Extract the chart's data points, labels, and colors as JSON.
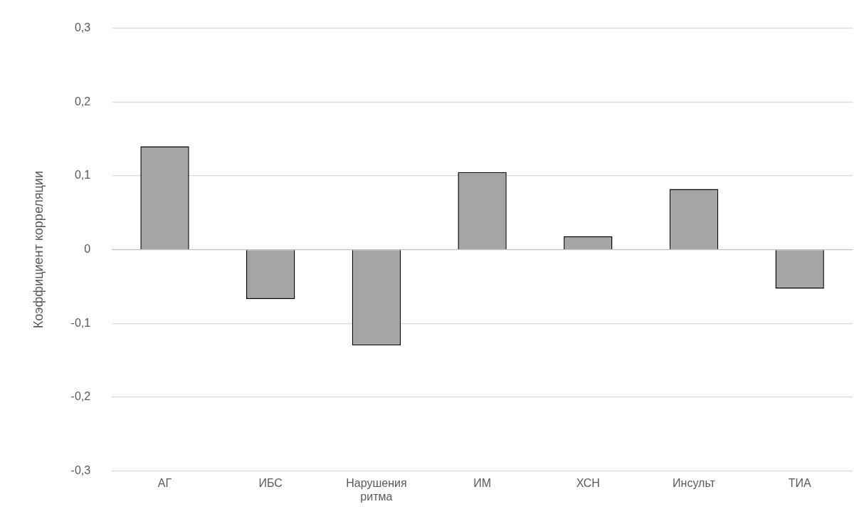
{
  "chart_data": {
    "type": "bar",
    "ylabel": "Коэффициент корреляции",
    "categories": [
      "АГ",
      "ИБС",
      "Нарушения ритма",
      "ИМ",
      "ХСН",
      "Инсульт",
      "ТИА"
    ],
    "values": [
      0.14,
      -0.067,
      -0.13,
      0.105,
      0.018,
      0.082,
      -0.053
    ],
    "color": "#a5a5a5",
    "ylim": [
      -0.3,
      0.3
    ],
    "yticks": [
      {
        "value": -0.3,
        "label": "-0,3"
      },
      {
        "value": -0.2,
        "label": "-0,2"
      },
      {
        "value": -0.1,
        "label": "-0,1"
      },
      {
        "value": 0,
        "label": "0"
      },
      {
        "value": 0.1,
        "label": "0,1"
      },
      {
        "value": 0.2,
        "label": "0,2"
      },
      {
        "value": 0.3,
        "label": "0,3"
      }
    ],
    "grid": "y",
    "legend": false
  }
}
